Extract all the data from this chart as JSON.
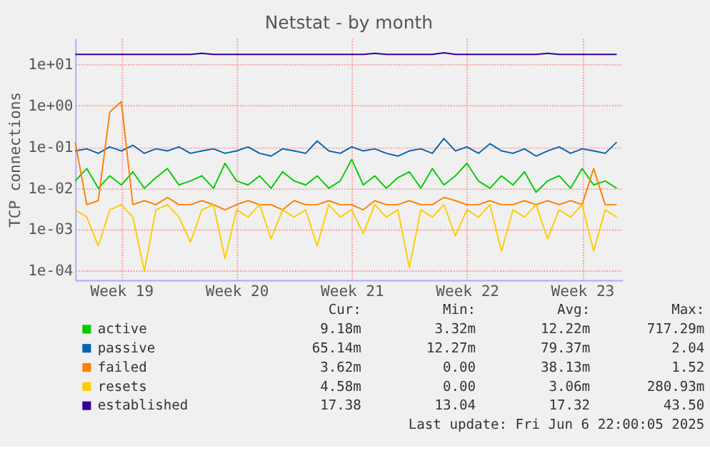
{
  "chart_data": {
    "type": "line",
    "title": "Netstat - by month",
    "ylabel": "TCP connections",
    "log": "y",
    "grid": true,
    "legend": "bottom",
    "categories": [
      null,
      null,
      null,
      null,
      "Week 19",
      null,
      null,
      null,
      null,
      null,
      null,
      null,
      null,
      null,
      "Week 20",
      null,
      null,
      null,
      null,
      null,
      null,
      null,
      null,
      null,
      "Week 21",
      null,
      null,
      null,
      null,
      null,
      null,
      null,
      null,
      null,
      "Week 22",
      null,
      null,
      null,
      null,
      null,
      null,
      null,
      null,
      null,
      "Week 23",
      null,
      null,
      null
    ],
    "ylim": [
      6e-05,
      43
    ],
    "yticks": [
      {
        "value": 0.0001,
        "label": "1e-04"
      },
      {
        "value": 0.001,
        "label": "1e-03"
      },
      {
        "value": 0.01,
        "label": "1e-02"
      },
      {
        "value": 0.1,
        "label": "1e-01"
      },
      {
        "value": 1,
        "label": "1e+00"
      },
      {
        "value": 10,
        "label": "1e+01"
      }
    ],
    "series": [
      {
        "name": "active",
        "color": "#00cc00",
        "values": [
          0.015,
          0.03,
          0.01,
          0.02,
          0.012,
          0.025,
          0.01,
          0.018,
          0.03,
          0.012,
          0.015,
          0.02,
          0.01,
          0.04,
          0.015,
          0.012,
          0.02,
          0.01,
          0.025,
          0.015,
          0.012,
          0.02,
          0.01,
          0.015,
          0.05,
          0.012,
          0.02,
          0.01,
          0.018,
          0.025,
          0.01,
          0.03,
          0.012,
          0.02,
          0.04,
          0.015,
          0.01,
          0.02,
          0.012,
          0.025,
          0.008,
          0.015,
          0.02,
          0.01,
          0.03,
          0.012,
          0.015,
          0.01
        ]
      },
      {
        "name": "passive",
        "color": "#0066b3",
        "values": [
          0.08,
          0.09,
          0.07,
          0.1,
          0.08,
          0.11,
          0.07,
          0.09,
          0.08,
          0.1,
          0.07,
          0.08,
          0.09,
          0.07,
          0.08,
          0.1,
          0.07,
          0.06,
          0.09,
          0.08,
          0.07,
          0.14,
          0.08,
          0.07,
          0.1,
          0.08,
          0.09,
          0.07,
          0.06,
          0.08,
          0.09,
          0.07,
          0.16,
          0.08,
          0.1,
          0.07,
          0.12,
          0.08,
          0.07,
          0.09,
          0.06,
          0.08,
          0.1,
          0.07,
          0.09,
          0.08,
          0.07,
          0.13
        ]
      },
      {
        "name": "failed",
        "color": "#ff8000",
        "values": [
          0.13,
          0.004,
          0.005,
          0.7,
          1.25,
          0.004,
          0.005,
          0.004,
          0.006,
          0.004,
          0.004,
          0.005,
          0.004,
          0.003,
          0.004,
          0.005,
          0.004,
          0.004,
          0.003,
          0.005,
          0.004,
          0.004,
          0.005,
          0.004,
          0.004,
          0.003,
          0.005,
          0.004,
          0.004,
          0.005,
          0.004,
          0.004,
          0.006,
          0.005,
          0.004,
          0.004,
          0.005,
          0.004,
          0.004,
          0.005,
          0.004,
          0.005,
          0.004,
          0.005,
          0.004,
          0.03,
          0.004,
          0.004
        ]
      },
      {
        "name": "resets",
        "color": "#ffcc00",
        "values": [
          0.003,
          0.002,
          0.0004,
          0.003,
          0.004,
          0.002,
          0.0001,
          0.003,
          0.004,
          0.002,
          0.0005,
          0.003,
          0.004,
          0.0002,
          0.003,
          0.002,
          0.004,
          0.0006,
          0.003,
          0.002,
          0.003,
          0.0004,
          0.004,
          0.002,
          0.003,
          0.0008,
          0.004,
          0.002,
          0.003,
          0.00012,
          0.003,
          0.002,
          0.004,
          0.0007,
          0.003,
          0.002,
          0.004,
          0.0003,
          0.003,
          0.002,
          0.004,
          0.0006,
          0.003,
          0.002,
          0.004,
          0.0003,
          0.003,
          0.002
        ]
      },
      {
        "name": "established",
        "color": "#330099",
        "values": [
          17.4,
          17.4,
          17.4,
          17.4,
          17.4,
          17.4,
          17.4,
          17.4,
          17.4,
          17.4,
          17.4,
          18.5,
          17.4,
          17.4,
          17.4,
          17.4,
          17.4,
          17.4,
          17.4,
          17.4,
          17.4,
          17.4,
          17.4,
          17.4,
          17.4,
          17.4,
          18.5,
          17.4,
          17.4,
          17.4,
          17.4,
          17.4,
          19,
          17.4,
          17.4,
          17.4,
          17.4,
          17.4,
          17.4,
          17.4,
          17.4,
          18.5,
          17.4,
          17.4,
          17.4,
          17.4,
          17.4,
          17.4
        ]
      }
    ],
    "annotations": [
      "Cur:",
      "Min:",
      "Avg:",
      "Max:",
      "9.18m",
      "3.32m",
      "12.22m",
      "717.29m",
      "65.14m",
      "12.27m",
      "79.37m",
      "2.04",
      "3.62m",
      "0.00",
      "38.13m",
      "1.52",
      "4.58m",
      "0.00",
      "3.06m",
      "280.93m",
      "17.38",
      "13.04",
      "17.32",
      "43.50",
      "Last update: Fri Jun  6 22:00:05 2025"
    ]
  }
}
